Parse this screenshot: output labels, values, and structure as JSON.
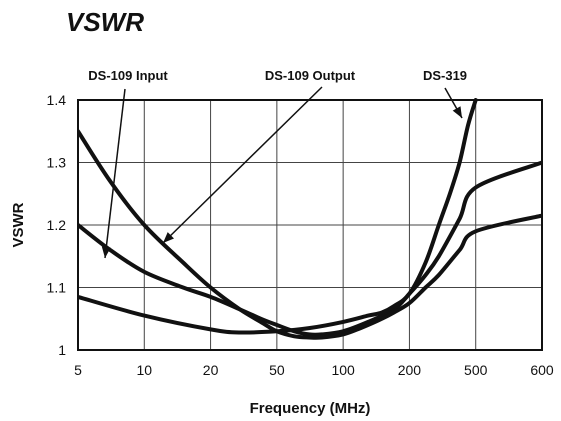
{
  "chart_data": {
    "type": "line",
    "title": "VSWR",
    "xlabel": "Frequency (MHz)",
    "ylabel": "VSWR",
    "x_ticks": [
      5,
      10,
      20,
      50,
      100,
      200,
      500,
      600
    ],
    "x_tick_labels": [
      "5",
      "10",
      "20",
      "50",
      "100",
      "200",
      "500",
      "600"
    ],
    "y_ticks": [
      1,
      1.1,
      1.2,
      1.3,
      1.4
    ],
    "y_tick_labels": [
      "1",
      "1.1",
      "1.2",
      "1.3",
      "1.4"
    ],
    "ylim": [
      1,
      1.4
    ],
    "grid": true,
    "series": [
      {
        "name": "DS-109 Input",
        "x": [
          5,
          7,
          10,
          15,
          20,
          30,
          40,
          50,
          60,
          70,
          80,
          100,
          130,
          170,
          200,
          250,
          300,
          400,
          500,
          600
        ],
        "y": [
          1.2,
          1.16,
          1.125,
          1.1,
          1.085,
          1.065,
          1.05,
          1.04,
          1.03,
          1.025,
          1.025,
          1.03,
          1.045,
          1.065,
          1.09,
          1.12,
          1.15,
          1.21,
          1.26,
          1.3
        ]
      },
      {
        "name": "DS-109 Output",
        "x": [
          5,
          7,
          10,
          15,
          20,
          30,
          40,
          50,
          60,
          70,
          80,
          100,
          120,
          150,
          170,
          200,
          250,
          300,
          400,
          500,
          600
        ],
        "y": [
          1.35,
          1.27,
          1.2,
          1.14,
          1.1,
          1.065,
          1.045,
          1.03,
          1.022,
          1.02,
          1.02,
          1.025,
          1.035,
          1.05,
          1.06,
          1.075,
          1.1,
          1.12,
          1.16,
          1.19,
          1.215
        ]
      },
      {
        "name": "DS-319",
        "x": [
          5,
          10,
          20,
          30,
          50,
          70,
          100,
          130,
          150,
          170,
          200,
          250,
          300,
          350,
          400,
          450,
          500
        ],
        "y": [
          1.085,
          1.055,
          1.033,
          1.028,
          1.03,
          1.035,
          1.045,
          1.055,
          1.06,
          1.07,
          1.09,
          1.14,
          1.2,
          1.25,
          1.3,
          1.36,
          1.4
        ]
      }
    ],
    "annotations": [
      {
        "text": "DS-109 Input",
        "series": "DS-109 Input"
      },
      {
        "text": "DS-109 Output",
        "series": "DS-109 Output"
      },
      {
        "text": "DS-319",
        "series": "DS-319"
      }
    ]
  }
}
